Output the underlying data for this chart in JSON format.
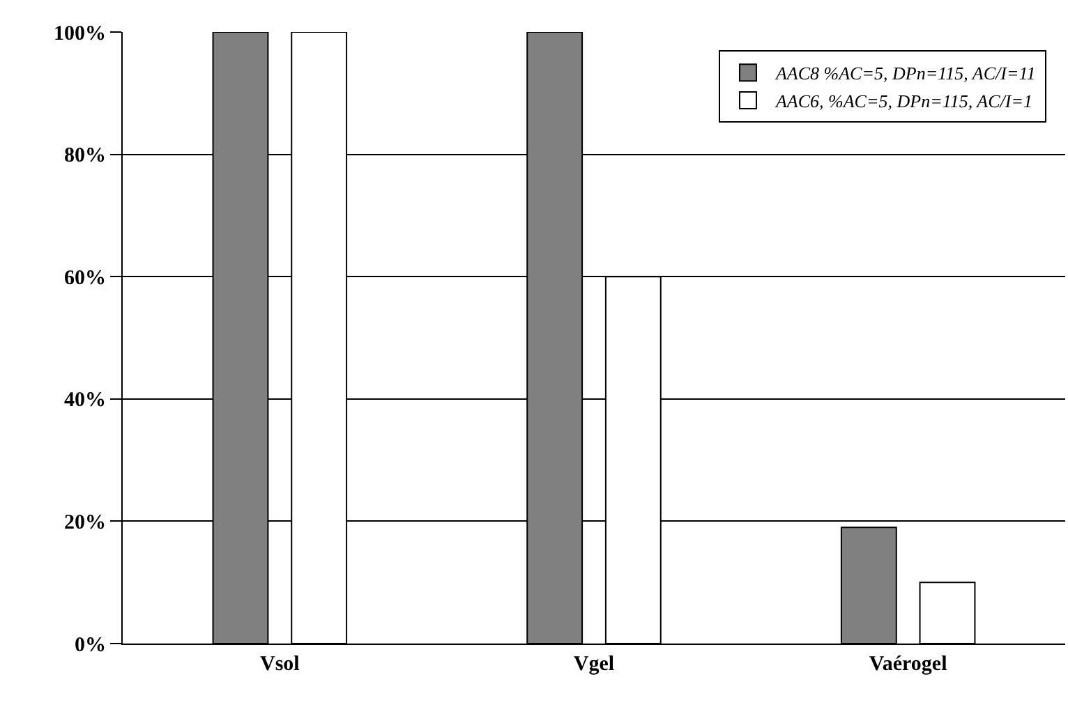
{
  "chart_data": {
    "type": "bar",
    "categories": [
      "Vsol",
      "Vgel",
      "Vaérogel"
    ],
    "series": [
      {
        "name": "AAC8 %AC=5, DPn=115, AC/I=11",
        "color": "#808080",
        "values": [
          100,
          100,
          19
        ]
      },
      {
        "name": "AAC6, %AC=5, DPn=115, AC/I=1",
        "color": "#ffffff",
        "values": [
          100,
          60,
          10
        ]
      }
    ],
    "ylim": [
      0,
      100
    ],
    "yticks": [
      {
        "value": 0,
        "label": "0%"
      },
      {
        "value": 20,
        "label": "20%"
      },
      {
        "value": 40,
        "label": "40%"
      },
      {
        "value": 60,
        "label": "60%"
      },
      {
        "value": 80,
        "label": "80%"
      },
      {
        "value": 100,
        "label": "100%"
      }
    ],
    "grid": "y",
    "legend": "top right"
  }
}
